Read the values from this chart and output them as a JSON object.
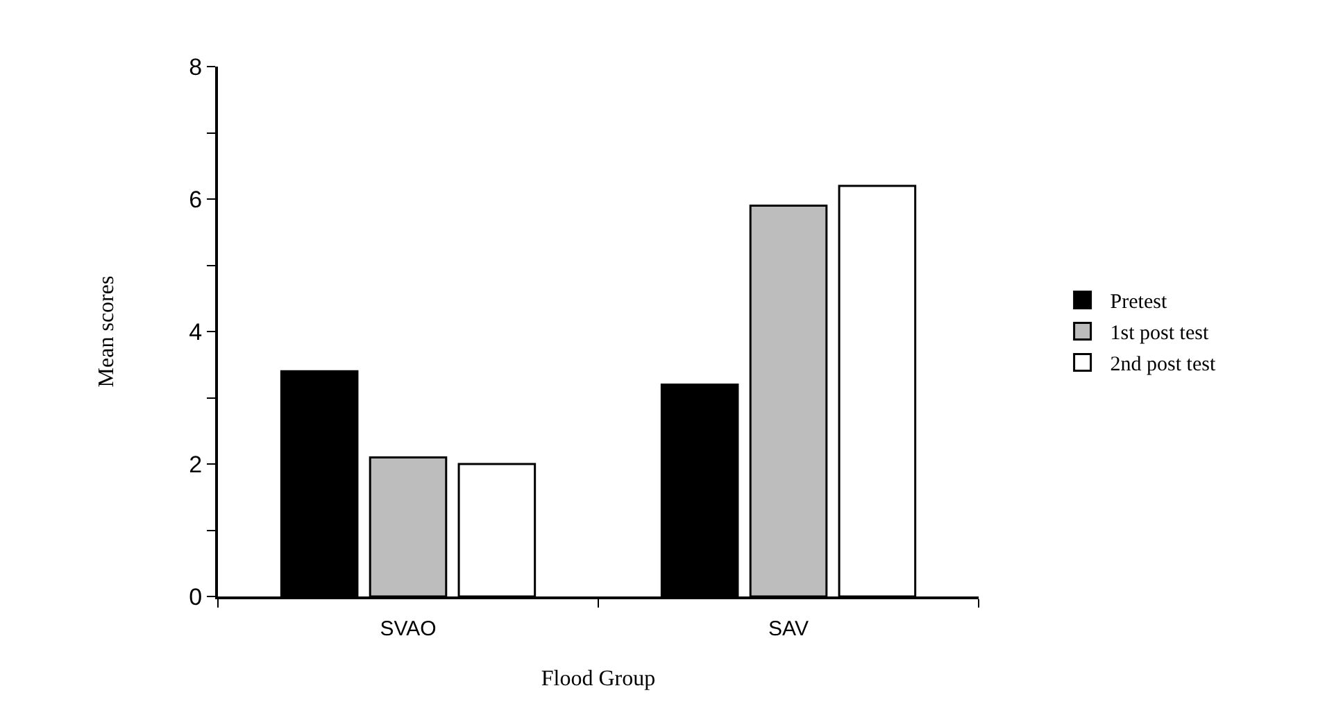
{
  "chart_data": {
    "type": "bar",
    "xlabel": "Flood Group",
    "ylabel": "Mean scores",
    "categories": [
      "SVAO",
      "SAV"
    ],
    "series": [
      {
        "name": "Pretest",
        "color": "#000000",
        "values": [
          3.4,
          3.2
        ]
      },
      {
        "name": "1st post test",
        "color": "#bdbdbd",
        "values": [
          2.1,
          5.9
        ]
      },
      {
        "name": "2nd post test",
        "color": "#ffffff",
        "values": [
          2.0,
          6.2
        ]
      }
    ],
    "ylim": [
      0,
      8
    ],
    "yticks": [
      0,
      {
        "value": 1,
        "label": null
      },
      2,
      {
        "value": 3,
        "label": null
      },
      4,
      {
        "value": 5,
        "label": null
      },
      6,
      {
        "value": 7,
        "label": null
      },
      8
    ],
    "grid": false,
    "legend": "right"
  }
}
